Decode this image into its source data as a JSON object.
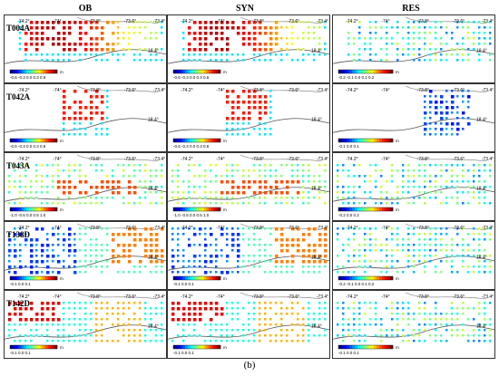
{
  "columns": [
    "OB",
    "SYN",
    "RES"
  ],
  "rows": [
    {
      "track": "T004A",
      "cbar_ob": "-0.6 -0.3 0.0  0.3  0.6",
      "cbar_res": "-0.2 -0.1 0.0 0.1 0.2"
    },
    {
      "track": "T042A",
      "cbar_ob": "-0.6 -0.3 0.0  0.3 0.6",
      "cbar_res": "-0.1    0.0    0.1"
    },
    {
      "track": "T043A",
      "cbar_ob": "-1.0 -0.5  0.0  0.5  1.0",
      "cbar_res": "-0.2  0.0  0.2"
    },
    {
      "track": "T138D",
      "cbar_ob": "-0.1     0.0     0.1",
      "cbar_res": "-0.2 -0.1 0.0  0.1  0.2"
    },
    {
      "track": "T142D",
      "cbar_ob": "-0.1     0.0     0.1",
      "cbar_res": "-0.1     0.0     0.1"
    }
  ],
  "lon_ticks": [
    "-74.2°",
    "-74°",
    "-73.8°",
    "-73.6°",
    "-73.4°"
  ],
  "lat_tick": "18.4°",
  "unit": "m",
  "caption": "(b)"
}
